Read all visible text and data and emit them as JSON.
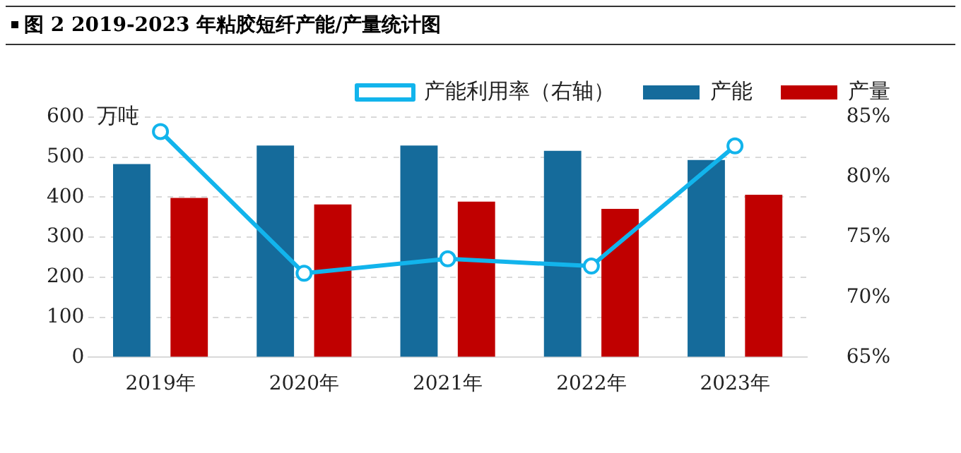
{
  "chart_data": {
    "type": "bar",
    "title": "图 2 2019-2023 年粘胶短纤产能/产量统计图",
    "ylabel": "万吨",
    "categories": [
      "2019年",
      "2020年",
      "2021年",
      "2022年",
      "2023年"
    ],
    "series": [
      {
        "name": "产能",
        "color": "#156b9b",
        "values": [
          483,
          529,
          529,
          516,
          493
        ]
      },
      {
        "name": "产量",
        "color": "#c00000",
        "values": [
          398,
          382,
          389,
          371,
          406
        ]
      },
      {
        "name": "产能利用率（右轴）",
        "type": "line",
        "axis": "y2",
        "color": "#12b4ec",
        "values": [
          83.8,
          72.0,
          73.2,
          72.6,
          82.6
        ]
      }
    ],
    "ylim": [
      0,
      600
    ],
    "yticks": [
      0,
      100,
      200,
      300,
      400,
      500,
      600
    ],
    "y2lim": [
      65,
      85
    ],
    "y2ticks": [
      {
        "value": 65,
        "label": "65%"
      },
      {
        "value": 70,
        "label": "70%"
      },
      {
        "value": 75,
        "label": "75%"
      },
      {
        "value": 80,
        "label": "80%"
      },
      {
        "value": 85,
        "label": "85%"
      }
    ],
    "grid": "y",
    "legend": "top",
    "marker": "circle"
  }
}
